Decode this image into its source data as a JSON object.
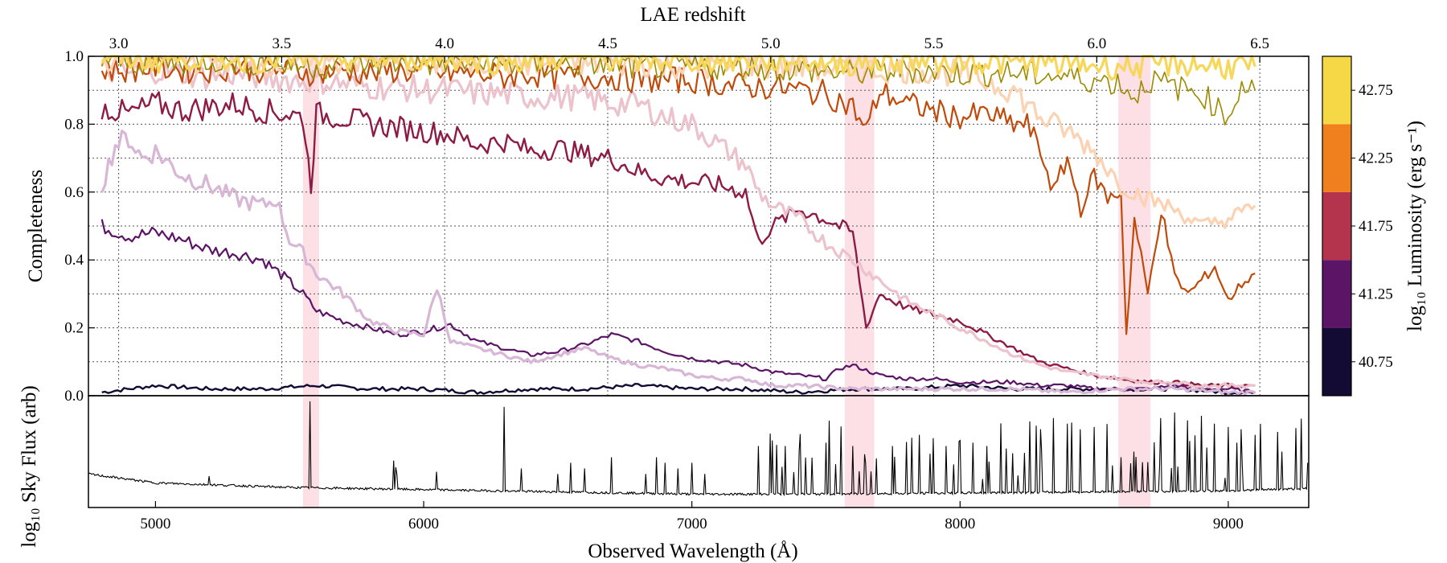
{
  "chart_data": [
    {
      "type": "line",
      "panel": "completeness",
      "title": "",
      "xlabel_top": "LAE redshift",
      "ylabel": "Completeness",
      "xlim": [
        4750,
        9300
      ],
      "ylim": [
        0.0,
        1.0
      ],
      "grid": true,
      "y_ticks": [
        "0.0",
        "0.2",
        "0.4",
        "0.6",
        "0.8",
        "1.0"
      ],
      "y_tick_values": [
        0.0,
        0.2,
        0.4,
        0.6,
        0.8,
        1.0
      ],
      "top_ticks": [
        "3.0",
        "3.5",
        "4.0",
        "4.5",
        "5.0",
        "5.5",
        "6.0",
        "6.5"
      ],
      "top_tick_values": [
        3.0,
        3.5,
        4.0,
        4.5,
        5.0,
        5.5,
        6.0,
        6.5
      ],
      "sky_line_bands": [
        [
          5550,
          5610
        ],
        [
          7570,
          7680
        ],
        [
          8590,
          8710
        ]
      ],
      "band_color": "#fde0e6",
      "series": [
        {
          "color": "#140b34",
          "alpha": 1,
          "width": 2.4,
          "x": [
            4800,
            5000,
            5200,
            5400,
            5600,
            5800,
            6000,
            6200,
            6400,
            6600,
            6800,
            7000,
            7200,
            7400,
            7600,
            7800,
            8000,
            8200,
            8400,
            8600,
            8800,
            9000,
            9100
          ],
          "y": [
            0.01,
            0.03,
            0.02,
            0.02,
            0.03,
            0.02,
            0.02,
            0.01,
            0.02,
            0.02,
            0.03,
            0.02,
            0.02,
            0.01,
            0.02,
            0.02,
            0.03,
            0.02,
            0.02,
            0.02,
            0.02,
            0.01,
            0.01
          ]
        },
        {
          "color": "#5c1467",
          "alpha": 1,
          "width": 2.2,
          "x": [
            4800,
            4900,
            5000,
            5100,
            5200,
            5300,
            5400,
            5480,
            5550,
            5600,
            5700,
            5800,
            5900,
            6000,
            6100,
            6200,
            6300,
            6400,
            6500,
            6600,
            6700,
            6800,
            6900,
            7000,
            7100,
            7200,
            7300,
            7400,
            7500,
            7550,
            7600,
            7700,
            7800,
            7900,
            8000,
            8100,
            8200,
            8300,
            8400,
            8500,
            8600,
            8700,
            8800,
            8900,
            9000,
            9100
          ],
          "y": [
            0.5,
            0.47,
            0.48,
            0.46,
            0.43,
            0.42,
            0.4,
            0.35,
            0.3,
            0.25,
            0.22,
            0.2,
            0.18,
            0.19,
            0.21,
            0.16,
            0.14,
            0.12,
            0.13,
            0.15,
            0.18,
            0.16,
            0.13,
            0.11,
            0.1,
            0.09,
            0.07,
            0.06,
            0.05,
            0.08,
            0.09,
            0.06,
            0.05,
            0.05,
            0.04,
            0.04,
            0.04,
            0.03,
            0.03,
            0.02,
            0.02,
            0.02,
            0.03,
            0.02,
            0.02,
            0.01
          ]
        },
        {
          "color": "#d8b7d6",
          "alpha": 1,
          "width": 3.2,
          "x": [
            4800,
            4850,
            4900,
            4950,
            5000,
            5100,
            5200,
            5300,
            5400,
            5450,
            5500,
            5550,
            5600,
            5700,
            5800,
            5900,
            6000,
            6050,
            6100,
            6200,
            6300,
            6400,
            6500,
            6600,
            6700,
            6800,
            6900,
            7000,
            7100,
            7200,
            7300,
            7400,
            7600,
            7800,
            8000,
            8200,
            8400,
            8600,
            8800,
            9000,
            9100
          ],
          "y": [
            0.62,
            0.74,
            0.76,
            0.7,
            0.72,
            0.65,
            0.62,
            0.58,
            0.56,
            0.58,
            0.46,
            0.42,
            0.36,
            0.3,
            0.22,
            0.19,
            0.18,
            0.32,
            0.16,
            0.14,
            0.12,
            0.1,
            0.12,
            0.14,
            0.11,
            0.09,
            0.08,
            0.06,
            0.05,
            0.05,
            0.03,
            0.03,
            0.02,
            0.02,
            0.02,
            0.02,
            0.01,
            0.02,
            0.02,
            0.01,
            0.01
          ]
        },
        {
          "color": "#8e1b45",
          "alpha": 1,
          "width": 2.4,
          "x": [
            4800,
            4900,
            5000,
            5100,
            5200,
            5300,
            5400,
            5500,
            5550,
            5580,
            5600,
            5700,
            5800,
            5900,
            6000,
            6100,
            6200,
            6300,
            6400,
            6500,
            6600,
            6700,
            6800,
            6900,
            7000,
            7100,
            7200,
            7250,
            7300,
            7400,
            7500,
            7600,
            7650,
            7700,
            7800,
            7900,
            8000,
            8100,
            8200,
            8300,
            8400,
            8500,
            8600,
            8700,
            8800,
            8900,
            9000,
            9100
          ],
          "y": [
            0.85,
            0.83,
            0.86,
            0.84,
            0.85,
            0.86,
            0.84,
            0.83,
            0.82,
            0.62,
            0.83,
            0.82,
            0.8,
            0.79,
            0.78,
            0.77,
            0.74,
            0.75,
            0.72,
            0.73,
            0.71,
            0.7,
            0.66,
            0.64,
            0.63,
            0.62,
            0.6,
            0.45,
            0.5,
            0.55,
            0.52,
            0.48,
            0.2,
            0.3,
            0.26,
            0.24,
            0.22,
            0.18,
            0.14,
            0.1,
            0.08,
            0.06,
            0.05,
            0.04,
            0.04,
            0.03,
            0.03,
            0.03
          ]
        },
        {
          "color": "#ecc2cc",
          "alpha": 1,
          "width": 3.2,
          "x": [
            4800,
            4900,
            5000,
            5100,
            5200,
            5300,
            5400,
            5500,
            5600,
            5700,
            5800,
            5900,
            6000,
            6100,
            6200,
            6300,
            6400,
            6500,
            6600,
            6700,
            6800,
            6900,
            7000,
            7100,
            7200,
            7250,
            7300,
            7400,
            7500,
            7600,
            7700,
            7800,
            7900,
            8000,
            8100,
            8200,
            8300,
            8400,
            8500,
            8600,
            8700,
            8800,
            8900,
            9000,
            9100
          ],
          "y": [
            0.96,
            0.95,
            0.96,
            0.95,
            0.94,
            0.95,
            0.94,
            0.93,
            0.93,
            0.92,
            0.91,
            0.91,
            0.9,
            0.9,
            0.89,
            0.89,
            0.88,
            0.88,
            0.88,
            0.86,
            0.86,
            0.82,
            0.8,
            0.74,
            0.68,
            0.6,
            0.56,
            0.52,
            0.45,
            0.4,
            0.34,
            0.28,
            0.24,
            0.2,
            0.16,
            0.12,
            0.09,
            0.07,
            0.06,
            0.05,
            0.04,
            0.04,
            0.03,
            0.03,
            0.03
          ]
        },
        {
          "color": "#c04a0a",
          "alpha": 1,
          "width": 2.2,
          "x": [
            4800,
            4900,
            5000,
            5100,
            5200,
            5300,
            5400,
            5500,
            5600,
            5700,
            5800,
            5900,
            6000,
            6100,
            6200,
            6300,
            6400,
            6500,
            6600,
            6700,
            6800,
            6900,
            7000,
            7100,
            7200,
            7300,
            7400,
            7500,
            7600,
            7650,
            7700,
            7800,
            7900,
            8000,
            8100,
            8200,
            8250,
            8300,
            8350,
            8400,
            8450,
            8500,
            8550,
            8600,
            8620,
            8650,
            8700,
            8750,
            8800,
            8850,
            8900,
            8950,
            9000,
            9050,
            9100
          ],
          "y": [
            0.96,
            0.96,
            0.97,
            0.96,
            0.96,
            0.97,
            0.96,
            0.96,
            0.95,
            0.96,
            0.95,
            0.96,
            0.95,
            0.95,
            0.95,
            0.94,
            0.95,
            0.94,
            0.94,
            0.94,
            0.93,
            0.93,
            0.93,
            0.92,
            0.91,
            0.91,
            0.9,
            0.89,
            0.85,
            0.78,
            0.9,
            0.86,
            0.84,
            0.82,
            0.83,
            0.8,
            0.8,
            0.72,
            0.6,
            0.7,
            0.55,
            0.65,
            0.58,
            0.6,
            0.18,
            0.52,
            0.3,
            0.55,
            0.35,
            0.3,
            0.34,
            0.38,
            0.28,
            0.33,
            0.36
          ]
        },
        {
          "color": "#fbd2b2",
          "alpha": 1,
          "width": 3.2,
          "x": [
            4800,
            5000,
            5200,
            5400,
            5600,
            5800,
            6000,
            6200,
            6400,
            6600,
            6800,
            7000,
            7200,
            7400,
            7600,
            7800,
            8000,
            8200,
            8300,
            8400,
            8500,
            8600,
            8700,
            8800,
            8900,
            9000,
            9100
          ],
          "y": [
            0.99,
            0.99,
            0.99,
            0.98,
            0.98,
            0.99,
            0.98,
            0.98,
            0.98,
            0.98,
            0.98,
            0.97,
            0.97,
            0.97,
            0.96,
            0.96,
            0.95,
            0.9,
            0.82,
            0.78,
            0.72,
            0.62,
            0.58,
            0.55,
            0.5,
            0.52,
            0.56
          ]
        },
        {
          "color": "#9c8a00",
          "alpha": 1,
          "width": 1.6,
          "x": [
            4800,
            5000,
            5200,
            5400,
            5600,
            5800,
            6000,
            6200,
            6400,
            6600,
            6800,
            7000,
            7200,
            7400,
            7600,
            7800,
            8000,
            8200,
            8400,
            8500,
            8600,
            8650,
            8700,
            8800,
            8900,
            9000,
            9050,
            9100
          ],
          "y": [
            0.99,
            0.98,
            0.99,
            0.98,
            0.97,
            0.98,
            0.98,
            0.98,
            0.97,
            0.98,
            0.97,
            0.97,
            0.97,
            0.96,
            0.95,
            0.96,
            0.95,
            0.95,
            0.94,
            0.93,
            0.92,
            0.88,
            0.93,
            0.91,
            0.89,
            0.82,
            0.92,
            0.9
          ]
        },
        {
          "color": "#f6d75a",
          "alpha": 1,
          "width": 3.2,
          "x": [
            4800,
            5000,
            5200,
            5400,
            5600,
            5800,
            6000,
            6200,
            6400,
            6600,
            6800,
            7000,
            7200,
            7400,
            7600,
            7800,
            8000,
            8200,
            8400,
            8600,
            8800,
            9000,
            9100
          ],
          "y": [
            1.0,
            0.99,
            1.0,
            0.99,
            1.0,
            0.99,
            1.0,
            0.99,
            0.99,
            1.0,
            0.99,
            0.99,
            0.99,
            0.99,
            0.98,
            0.99,
            0.99,
            0.98,
            0.98,
            0.97,
            0.98,
            0.97,
            0.97
          ]
        }
      ]
    },
    {
      "type": "line",
      "panel": "sky",
      "xlabel": "Observed Wavelength (Å)",
      "ylabel": "log₁₀ Sky Flux (arb)",
      "xlim": [
        4750,
        9300
      ],
      "x_ticks": [
        "5000",
        "6000",
        "7000",
        "8000",
        "9000"
      ],
      "x_tick_values": [
        5000,
        6000,
        7000,
        8000,
        9000
      ],
      "series": [
        {
          "color": "#000000",
          "continuum_x": [
            4750,
            5000,
            5500,
            6000,
            6500,
            7000,
            7200,
            7500,
            8000,
            8500,
            9000,
            9300
          ],
          "continuum_y": [
            0.3,
            0.22,
            0.18,
            0.16,
            0.14,
            0.12,
            0.12,
            0.12,
            0.13,
            0.14,
            0.15,
            0.17
          ],
          "lines_x": [
            5200,
            5577,
            5577,
            5890,
            5896,
            5900,
            6050,
            6300,
            6300,
            6364,
            6500,
            6550,
            6600,
            6700,
            6830,
            6870,
            6900,
            6950,
            7000,
            7050,
            7250,
            7300,
            7350,
            7400,
            7500,
            7600,
            7650,
            7750,
            7800,
            7850,
            7900,
            7950,
            8000,
            8050,
            8100,
            8300,
            8350,
            8400,
            8450,
            8500,
            8550,
            8600,
            8650,
            8700,
            8750,
            8800,
            8850,
            8900,
            8950,
            9000,
            9050,
            9100,
            9200,
            9300
          ],
          "lines_y": [
            0.28,
            0.95,
            0.95,
            0.42,
            0.36,
            0.3,
            0.32,
            0.4,
            0.9,
            0.35,
            0.3,
            0.4,
            0.35,
            0.45,
            0.3,
            0.45,
            0.4,
            0.35,
            0.4,
            0.3,
            0.55,
            0.6,
            0.55,
            0.5,
            0.58,
            0.55,
            0.4,
            0.55,
            0.6,
            0.65,
            0.62,
            0.55,
            0.6,
            0.58,
            0.55,
            0.7,
            0.8,
            0.75,
            0.7,
            0.72,
            0.68,
            0.45,
            0.5,
            0.4,
            0.8,
            0.85,
            0.78,
            0.82,
            0.75,
            0.72,
            0.7,
            0.65,
            0.5,
            0.4
          ]
        }
      ]
    }
  ],
  "colorbar": {
    "label": "log₁₀ Luminosity (erg s⁻¹)",
    "ticks": [
      "40.75",
      "41.25",
      "41.75",
      "42.25",
      "42.75"
    ],
    "colors": [
      "#140b34",
      "#5c1467",
      "#b5344d",
      "#f07f1d",
      "#f6d745"
    ]
  }
}
